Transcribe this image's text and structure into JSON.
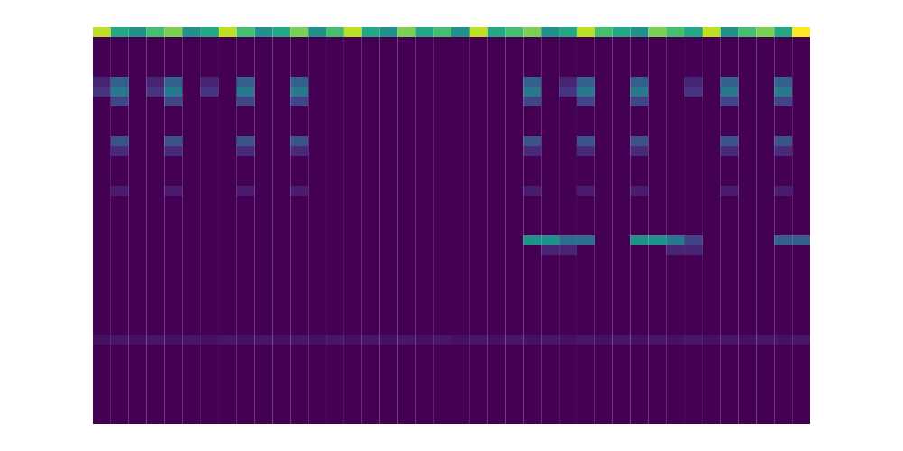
{
  "chart_data": {
    "type": "heatmap",
    "color": "viridis",
    "tick_labels": false,
    "color_range": [
      0,
      1
    ],
    "cells": [
      [
        0.9,
        0.6,
        0.5,
        0.7,
        0.8,
        0.5,
        0.6,
        0.9,
        0.7,
        0.5,
        0.6,
        0.8,
        0.5,
        0.7,
        0.9,
        0.6,
        0.5,
        0.8,
        0.6,
        0.7,
        0.5,
        0.9,
        0.6,
        0.7,
        0.8,
        0.5,
        0.6,
        0.9,
        0.7,
        0.6,
        0.5,
        0.8,
        0.7,
        0.6,
        0.9,
        0.5,
        0.7,
        0.8,
        0.6,
        1.0
      ],
      [
        0,
        0,
        0,
        0,
        0,
        0,
        0,
        0,
        0,
        0,
        0,
        0,
        0,
        0,
        0,
        0,
        0,
        0,
        0,
        0,
        0,
        0,
        0,
        0,
        0,
        0,
        0,
        0,
        0,
        0,
        0,
        0,
        0,
        0,
        0,
        0,
        0,
        0,
        0,
        0
      ],
      [
        0,
        0,
        0,
        0,
        0,
        0,
        0,
        0,
        0,
        0,
        0,
        0,
        0,
        0,
        0,
        0,
        0,
        0,
        0,
        0,
        0,
        0,
        0,
        0,
        0,
        0,
        0,
        0,
        0,
        0,
        0,
        0,
        0,
        0,
        0,
        0,
        0,
        0,
        0,
        0
      ],
      [
        0,
        0,
        0,
        0,
        0,
        0,
        0,
        0,
        0,
        0,
        0,
        0,
        0,
        0,
        0,
        0,
        0,
        0,
        0,
        0,
        0,
        0,
        0,
        0,
        0,
        0,
        0,
        0,
        0,
        0,
        0,
        0,
        0,
        0,
        0,
        0,
        0,
        0,
        0,
        0
      ],
      [
        0,
        0,
        0,
        0,
        0,
        0,
        0,
        0,
        0,
        0,
        0,
        0,
        0,
        0,
        0,
        0,
        0,
        0,
        0,
        0,
        0,
        0,
        0,
        0,
        0,
        0,
        0,
        0,
        0,
        0,
        0,
        0,
        0,
        0,
        0,
        0,
        0,
        0,
        0,
        0
      ],
      [
        0.1,
        0.3,
        0,
        0.1,
        0.3,
        0,
        0.1,
        0,
        0.3,
        0,
        0,
        0.3,
        0,
        0,
        0,
        0,
        0,
        0,
        0,
        0,
        0,
        0,
        0,
        0,
        0.3,
        0,
        0.1,
        0.3,
        0,
        0,
        0.3,
        0,
        0,
        0.1,
        0,
        0.3,
        0,
        0,
        0.3,
        0
      ],
      [
        0.15,
        0.4,
        0,
        0.15,
        0.4,
        0,
        0.15,
        0,
        0.4,
        0,
        0,
        0.4,
        0,
        0,
        0,
        0,
        0,
        0,
        0,
        0,
        0,
        0,
        0,
        0,
        0.4,
        0,
        0.15,
        0.4,
        0,
        0,
        0.4,
        0,
        0,
        0.15,
        0,
        0.4,
        0,
        0,
        0.4,
        0
      ],
      [
        0,
        0.2,
        0,
        0,
        0.2,
        0,
        0,
        0,
        0.2,
        0,
        0,
        0.2,
        0,
        0,
        0,
        0,
        0,
        0,
        0,
        0,
        0,
        0,
        0,
        0,
        0.2,
        0,
        0,
        0.2,
        0,
        0,
        0.2,
        0,
        0,
        0,
        0,
        0.2,
        0,
        0,
        0.2,
        0
      ],
      [
        0,
        0,
        0,
        0,
        0,
        0,
        0,
        0,
        0,
        0,
        0,
        0,
        0,
        0,
        0,
        0,
        0,
        0,
        0,
        0,
        0,
        0,
        0,
        0,
        0,
        0,
        0,
        0,
        0,
        0,
        0,
        0,
        0,
        0,
        0,
        0,
        0,
        0,
        0,
        0
      ],
      [
        0,
        0,
        0,
        0,
        0,
        0,
        0,
        0,
        0,
        0,
        0,
        0,
        0,
        0,
        0,
        0,
        0,
        0,
        0,
        0,
        0,
        0,
        0,
        0,
        0,
        0,
        0,
        0,
        0,
        0,
        0,
        0,
        0,
        0,
        0,
        0,
        0,
        0,
        0,
        0
      ],
      [
        0,
        0,
        0,
        0,
        0,
        0,
        0,
        0,
        0,
        0,
        0,
        0,
        0,
        0,
        0,
        0,
        0,
        0,
        0,
        0,
        0,
        0,
        0,
        0,
        0,
        0,
        0,
        0,
        0,
        0,
        0,
        0,
        0,
        0,
        0,
        0,
        0,
        0,
        0,
        0
      ],
      [
        0,
        0.25,
        0,
        0,
        0.25,
        0,
        0,
        0,
        0.25,
        0,
        0,
        0.25,
        0,
        0,
        0,
        0,
        0,
        0,
        0,
        0,
        0,
        0,
        0,
        0,
        0.25,
        0,
        0,
        0.25,
        0,
        0,
        0.25,
        0,
        0,
        0,
        0,
        0.25,
        0,
        0,
        0.25,
        0
      ],
      [
        0,
        0.12,
        0,
        0,
        0.12,
        0,
        0,
        0,
        0.12,
        0,
        0,
        0.12,
        0,
        0,
        0,
        0,
        0,
        0,
        0,
        0,
        0,
        0,
        0,
        0,
        0.12,
        0,
        0,
        0.12,
        0,
        0,
        0.12,
        0,
        0,
        0,
        0,
        0.12,
        0,
        0,
        0.12,
        0
      ],
      [
        0,
        0,
        0,
        0,
        0,
        0,
        0,
        0,
        0,
        0,
        0,
        0,
        0,
        0,
        0,
        0,
        0,
        0,
        0,
        0,
        0,
        0,
        0,
        0,
        0,
        0,
        0,
        0,
        0,
        0,
        0,
        0,
        0,
        0,
        0,
        0,
        0,
        0,
        0,
        0
      ],
      [
        0,
        0,
        0,
        0,
        0,
        0,
        0,
        0,
        0,
        0,
        0,
        0,
        0,
        0,
        0,
        0,
        0,
        0,
        0,
        0,
        0,
        0,
        0,
        0,
        0,
        0,
        0,
        0,
        0,
        0,
        0,
        0,
        0,
        0,
        0,
        0,
        0,
        0,
        0,
        0
      ],
      [
        0,
        0,
        0,
        0,
        0,
        0,
        0,
        0,
        0,
        0,
        0,
        0,
        0,
        0,
        0,
        0,
        0,
        0,
        0,
        0,
        0,
        0,
        0,
        0,
        0,
        0,
        0,
        0,
        0,
        0,
        0,
        0,
        0,
        0,
        0,
        0,
        0,
        0,
        0,
        0
      ],
      [
        0,
        0.08,
        0,
        0,
        0.08,
        0,
        0,
        0,
        0.08,
        0,
        0,
        0.08,
        0,
        0,
        0,
        0,
        0,
        0,
        0,
        0,
        0,
        0,
        0,
        0,
        0.08,
        0,
        0,
        0.08,
        0,
        0,
        0.08,
        0,
        0,
        0,
        0,
        0.08,
        0,
        0,
        0.08,
        0
      ],
      [
        0,
        0,
        0,
        0,
        0,
        0,
        0,
        0,
        0,
        0,
        0,
        0,
        0,
        0,
        0,
        0,
        0,
        0,
        0,
        0,
        0,
        0,
        0,
        0,
        0,
        0,
        0,
        0,
        0,
        0,
        0,
        0,
        0,
        0,
        0,
        0,
        0,
        0,
        0,
        0
      ],
      [
        0,
        0,
        0,
        0,
        0,
        0,
        0,
        0,
        0,
        0,
        0,
        0,
        0,
        0,
        0,
        0,
        0,
        0,
        0,
        0,
        0,
        0,
        0,
        0,
        0,
        0,
        0,
        0,
        0,
        0,
        0,
        0,
        0,
        0,
        0,
        0,
        0,
        0,
        0,
        0
      ],
      [
        0,
        0,
        0,
        0,
        0,
        0,
        0,
        0,
        0,
        0,
        0,
        0,
        0,
        0,
        0,
        0,
        0,
        0,
        0,
        0,
        0,
        0,
        0,
        0,
        0,
        0,
        0,
        0,
        0,
        0,
        0,
        0,
        0,
        0,
        0,
        0,
        0,
        0,
        0,
        0
      ],
      [
        0,
        0,
        0,
        0,
        0,
        0,
        0,
        0,
        0,
        0,
        0,
        0,
        0,
        0,
        0,
        0,
        0,
        0,
        0,
        0,
        0,
        0,
        0,
        0,
        0,
        0,
        0,
        0,
        0,
        0,
        0,
        0,
        0,
        0,
        0,
        0,
        0,
        0,
        0,
        0
      ],
      [
        0,
        0,
        0,
        0,
        0,
        0,
        0,
        0,
        0,
        0,
        0,
        0,
        0,
        0,
        0,
        0,
        0,
        0,
        0,
        0,
        0,
        0,
        0,
        0,
        0.5,
        0.5,
        0.35,
        0.35,
        0,
        0,
        0.5,
        0.5,
        0.4,
        0.2,
        0,
        0,
        0,
        0,
        0.3,
        0.3
      ],
      [
        0,
        0,
        0,
        0,
        0,
        0,
        0,
        0,
        0,
        0,
        0,
        0,
        0,
        0,
        0,
        0,
        0,
        0,
        0,
        0,
        0,
        0,
        0,
        0,
        0,
        0.1,
        0.1,
        0,
        0,
        0,
        0,
        0,
        0.1,
        0.1,
        0,
        0,
        0,
        0,
        0,
        0
      ],
      [
        0,
        0,
        0,
        0,
        0,
        0,
        0,
        0,
        0,
        0,
        0,
        0,
        0,
        0,
        0,
        0,
        0,
        0,
        0,
        0,
        0,
        0,
        0,
        0,
        0,
        0,
        0,
        0,
        0,
        0,
        0,
        0,
        0,
        0,
        0,
        0,
        0,
        0,
        0,
        0
      ],
      [
        0,
        0,
        0,
        0,
        0,
        0,
        0,
        0,
        0,
        0,
        0,
        0,
        0,
        0,
        0,
        0,
        0,
        0,
        0,
        0,
        0,
        0,
        0,
        0,
        0,
        0,
        0,
        0,
        0,
        0,
        0,
        0,
        0,
        0,
        0,
        0,
        0,
        0,
        0,
        0
      ],
      [
        0,
        0,
        0,
        0,
        0,
        0,
        0,
        0,
        0,
        0,
        0,
        0,
        0,
        0,
        0,
        0,
        0,
        0,
        0,
        0,
        0,
        0,
        0,
        0,
        0,
        0,
        0,
        0,
        0,
        0,
        0,
        0,
        0,
        0,
        0,
        0,
        0,
        0,
        0,
        0
      ],
      [
        0,
        0,
        0,
        0,
        0,
        0,
        0,
        0,
        0,
        0,
        0,
        0,
        0,
        0,
        0,
        0,
        0,
        0,
        0,
        0,
        0,
        0,
        0,
        0,
        0,
        0,
        0,
        0,
        0,
        0,
        0,
        0,
        0,
        0,
        0,
        0,
        0,
        0,
        0,
        0
      ],
      [
        0,
        0,
        0,
        0,
        0,
        0,
        0,
        0,
        0,
        0,
        0,
        0,
        0,
        0,
        0,
        0,
        0,
        0,
        0,
        0,
        0,
        0,
        0,
        0,
        0,
        0,
        0,
        0,
        0,
        0,
        0,
        0,
        0,
        0,
        0,
        0,
        0,
        0,
        0,
        0
      ],
      [
        0,
        0,
        0,
        0,
        0,
        0,
        0,
        0,
        0,
        0,
        0,
        0,
        0,
        0,
        0,
        0,
        0,
        0,
        0,
        0,
        0,
        0,
        0,
        0,
        0,
        0,
        0,
        0,
        0,
        0,
        0,
        0,
        0,
        0,
        0,
        0,
        0,
        0,
        0,
        0
      ],
      [
        0,
        0,
        0,
        0,
        0,
        0,
        0,
        0,
        0,
        0,
        0,
        0,
        0,
        0,
        0,
        0,
        0,
        0,
        0,
        0,
        0,
        0,
        0,
        0,
        0,
        0,
        0,
        0,
        0,
        0,
        0,
        0,
        0,
        0,
        0,
        0,
        0,
        0,
        0,
        0
      ],
      [
        0,
        0,
        0,
        0,
        0,
        0,
        0,
        0,
        0,
        0,
        0,
        0,
        0,
        0,
        0,
        0,
        0,
        0,
        0,
        0,
        0,
        0,
        0,
        0,
        0,
        0,
        0,
        0,
        0,
        0,
        0,
        0,
        0,
        0,
        0,
        0,
        0,
        0,
        0,
        0
      ],
      [
        0.04,
        0.06,
        0.04,
        0.06,
        0.04,
        0.06,
        0.04,
        0.06,
        0.04,
        0.06,
        0.04,
        0.06,
        0.04,
        0.06,
        0.04,
        0.06,
        0.04,
        0.06,
        0.04,
        0.06,
        0.04,
        0.06,
        0.04,
        0.06,
        0.04,
        0.06,
        0.04,
        0.06,
        0.04,
        0.06,
        0.04,
        0.06,
        0.04,
        0.06,
        0.04,
        0.06,
        0.04,
        0.06,
        0.04,
        0.06
      ],
      [
        0,
        0,
        0,
        0,
        0,
        0,
        0,
        0,
        0,
        0,
        0,
        0,
        0,
        0,
        0,
        0,
        0,
        0,
        0,
        0,
        0,
        0,
        0,
        0,
        0,
        0,
        0,
        0,
        0,
        0,
        0,
        0,
        0,
        0,
        0,
        0,
        0,
        0,
        0,
        0
      ],
      [
        0,
        0,
        0,
        0,
        0,
        0,
        0,
        0,
        0,
        0,
        0,
        0,
        0,
        0,
        0,
        0,
        0,
        0,
        0,
        0,
        0,
        0,
        0,
        0,
        0,
        0,
        0,
        0,
        0,
        0,
        0,
        0,
        0,
        0,
        0,
        0,
        0,
        0,
        0,
        0
      ],
      [
        0,
        0,
        0,
        0,
        0,
        0,
        0,
        0,
        0,
        0,
        0,
        0,
        0,
        0,
        0,
        0,
        0,
        0,
        0,
        0,
        0,
        0,
        0,
        0,
        0,
        0,
        0,
        0,
        0,
        0,
        0,
        0,
        0,
        0,
        0,
        0,
        0,
        0,
        0,
        0
      ],
      [
        0,
        0,
        0,
        0,
        0,
        0,
        0,
        0,
        0,
        0,
        0,
        0,
        0,
        0,
        0,
        0,
        0,
        0,
        0,
        0,
        0,
        0,
        0,
        0,
        0,
        0,
        0,
        0,
        0,
        0,
        0,
        0,
        0,
        0,
        0,
        0,
        0,
        0,
        0,
        0
      ],
      [
        0,
        0,
        0,
        0,
        0,
        0,
        0,
        0,
        0,
        0,
        0,
        0,
        0,
        0,
        0,
        0,
        0,
        0,
        0,
        0,
        0,
        0,
        0,
        0,
        0,
        0,
        0,
        0,
        0,
        0,
        0,
        0,
        0,
        0,
        0,
        0,
        0,
        0,
        0,
        0
      ],
      [
        0,
        0,
        0,
        0,
        0,
        0,
        0,
        0,
        0,
        0,
        0,
        0,
        0,
        0,
        0,
        0,
        0,
        0,
        0,
        0,
        0,
        0,
        0,
        0,
        0,
        0,
        0,
        0,
        0,
        0,
        0,
        0,
        0,
        0,
        0,
        0,
        0,
        0,
        0,
        0
      ],
      [
        0,
        0,
        0,
        0,
        0,
        0,
        0,
        0,
        0,
        0,
        0,
        0,
        0,
        0,
        0,
        0,
        0,
        0,
        0,
        0,
        0,
        0,
        0,
        0,
        0,
        0,
        0,
        0,
        0,
        0,
        0,
        0,
        0,
        0,
        0,
        0,
        0,
        0,
        0,
        0
      ],
      [
        0,
        0,
        0,
        0,
        0,
        0,
        0,
        0,
        0,
        0,
        0,
        0,
        0,
        0,
        0,
        0,
        0,
        0,
        0,
        0,
        0,
        0,
        0,
        0,
        0,
        0,
        0,
        0,
        0,
        0,
        0,
        0,
        0,
        0,
        0,
        0,
        0,
        0,
        0,
        0
      ]
    ]
  }
}
